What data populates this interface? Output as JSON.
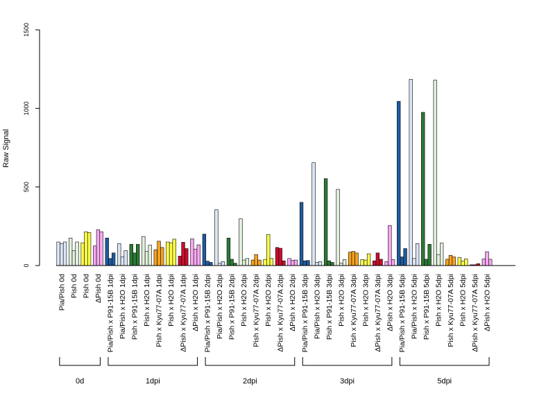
{
  "chart_data": {
    "type": "bar",
    "title": "",
    "xlabel": "",
    "ylabel": "Raw Signal",
    "ylim": [
      0,
      1500
    ],
    "yticks": [
      0,
      500,
      1000,
      1500
    ],
    "grid": false,
    "bars_per_category": 3,
    "categories": [
      {
        "label": "Pia/Pish 0d",
        "color": "#dbe6f6",
        "values": [
          150,
          140,
          150
        ]
      },
      {
        "label": "Pish 0d",
        "color": "#e2f0dc",
        "values": [
          175,
          95,
          150
        ]
      },
      {
        "label": "Pish 0d",
        "color": "#ffff4c",
        "values": [
          145,
          215,
          210
        ]
      },
      {
        "label": "ΔPish 0d",
        "color": "#f7a8f2",
        "values": [
          125,
          228,
          215
        ]
      },
      {
        "label": "Pia/Pish x P91-15B 1dpi",
        "color": "#1f5c9f",
        "values": [
          175,
          45,
          80
        ]
      },
      {
        "label": "Pia/Pish x H2O 1dpi",
        "color": "#dbe6f6",
        "values": [
          140,
          55,
          95
        ]
      },
      {
        "label": "Pish x P91-15B 1dpi",
        "color": "#2d7a36",
        "values": [
          135,
          80,
          135
        ]
      },
      {
        "label": "Pish x H2O 1dpi",
        "color": "#e2f0dc",
        "values": [
          185,
          90,
          130
        ]
      },
      {
        "label": "Pish x Kyu77-07A 1dpi",
        "color": "#f5a320",
        "values": [
          100,
          155,
          115
        ]
      },
      {
        "label": "Pish x H2O 1dpi",
        "color": "#ffff4c",
        "values": [
          150,
          145,
          168
        ]
      },
      {
        "label": "ΔPish x Kyu77-07A 1dpi",
        "color": "#c8102e",
        "values": [
          60,
          148,
          108
        ]
      },
      {
        "label": "ΔPish x H2O 1dpi",
        "color": "#f7a8f2",
        "values": [
          170,
          105,
          132
        ]
      },
      {
        "label": "Pia/Pish x P91-15B 2dpi",
        "color": "#1f5c9f",
        "values": [
          200,
          28,
          20
        ]
      },
      {
        "label": "Pia/Pish x H2O 2dpi",
        "color": "#dbe6f6",
        "values": [
          355,
          15,
          25
        ]
      },
      {
        "label": "Pish x P91-15B 2dpi",
        "color": "#2d7a36",
        "values": [
          175,
          40,
          15
        ]
      },
      {
        "label": "Pish x H2O 2dpi",
        "color": "#e2f0dc",
        "values": [
          297,
          35,
          45
        ]
      },
      {
        "label": "Pish x Kyu77-07A 2dpi",
        "color": "#f5a320",
        "values": [
          35,
          70,
          35
        ]
      },
      {
        "label": "Pish x H2O 2dpi",
        "color": "#ffff4c",
        "values": [
          38,
          198,
          45
        ]
      },
      {
        "label": "ΔPish x Kyu77-07A 2dpi",
        "color": "#c8102e",
        "values": [
          115,
          110,
          30
        ]
      },
      {
        "label": "ΔPish x H2O 2dpi",
        "color": "#f7a8f2",
        "values": [
          45,
          33,
          35
        ]
      },
      {
        "label": "Pia/Pish x P91-15B 3dpi",
        "color": "#1f5c9f",
        "values": [
          402,
          30,
          32
        ]
      },
      {
        "label": "Pia/Pish x H2O 3dpi",
        "color": "#dbe6f6",
        "values": [
          655,
          20,
          25
        ]
      },
      {
        "label": "Pish x P91-15B 3dpi",
        "color": "#2d7a36",
        "values": [
          553,
          30,
          20
        ]
      },
      {
        "label": "Pish x H2O 3dpi",
        "color": "#e2f0dc",
        "values": [
          485,
          15,
          38
        ]
      },
      {
        "label": "Pish x Kyu77-07A 3dpi",
        "color": "#f5a320",
        "values": [
          85,
          90,
          80
        ]
      },
      {
        "label": "Pish x H2O 3dpi",
        "color": "#ffff4c",
        "values": [
          38,
          35,
          75
        ]
      },
      {
        "label": "ΔPish x Kyu77-07A 3dpi",
        "color": "#c8102e",
        "values": [
          30,
          80,
          40
        ]
      },
      {
        "label": "ΔPish x H2O 3dpi",
        "color": "#f7a8f2",
        "values": [
          25,
          255,
          38
        ]
      },
      {
        "label": "Pia/Pish x P91-15B 5dpi",
        "color": "#1f5c9f",
        "values": [
          1045,
          55,
          108
        ]
      },
      {
        "label": "Pia/Pish x H2O 5dpi",
        "color": "#dbe6f6",
        "values": [
          1185,
          45,
          140
        ]
      },
      {
        "label": "Pish x P91-15B 5dpi",
        "color": "#2d7a36",
        "values": [
          975,
          40,
          135
        ]
      },
      {
        "label": "Pish x H2O 5dpi",
        "color": "#e2f0dc",
        "values": [
          1180,
          70,
          143
        ]
      },
      {
        "label": "Pish x Kyu77-07A 5dpi",
        "color": "#f5a320",
        "values": [
          40,
          65,
          55
        ]
      },
      {
        "label": "Pish x H2O 5dpi",
        "color": "#ffff4c",
        "values": [
          52,
          28,
          42
        ]
      },
      {
        "label": "ΔPish x Kyu77-07A 5dpi",
        "color": "#c8102e",
        "values": [
          5,
          5,
          12
        ]
      },
      {
        "label": "ΔPish x H2O 5dpi",
        "color": "#f7a8f2",
        "values": [
          42,
          88,
          40
        ]
      }
    ],
    "groups": [
      {
        "label": "0d",
        "start": 0,
        "end": 3
      },
      {
        "label": "1dpi",
        "start": 4,
        "end": 11
      },
      {
        "label": "2dpi",
        "start": 12,
        "end": 19
      },
      {
        "label": "3dpi",
        "start": 20,
        "end": 27
      },
      {
        "label": "5dpi",
        "start": 28,
        "end": 35
      }
    ]
  }
}
